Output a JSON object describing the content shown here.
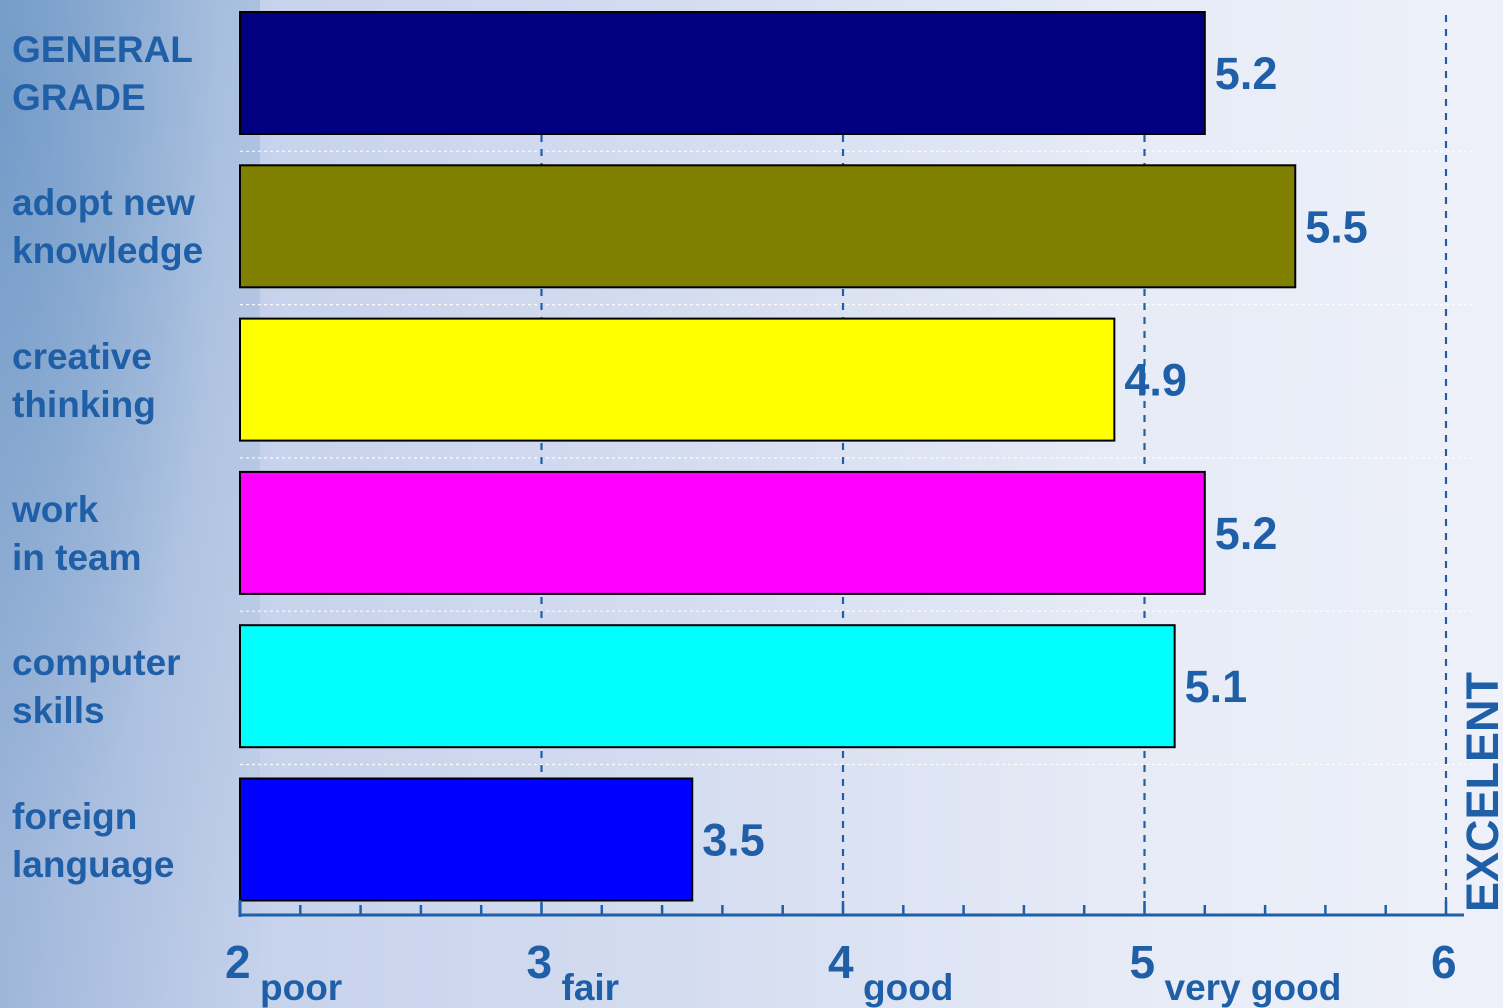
{
  "chart_data": {
    "type": "bar",
    "orientation": "horizontal",
    "categories": [
      "GENERAL\nGRADE",
      "adopt new\nknowledge",
      "creative\nthinking",
      "work\nin team",
      "computer\nskills",
      "foreign\nlanguage"
    ],
    "values": [
      5.2,
      5.5,
      4.9,
      5.2,
      5.1,
      3.5
    ],
    "value_labels": [
      "5.2",
      "5.5",
      "4.9",
      "5.2",
      "5.1",
      "3.5"
    ],
    "colors": [
      "#000080",
      "#808000",
      "#ffff00",
      "#ff00ff",
      "#00ffff",
      "#0000ff"
    ],
    "xlim": [
      2,
      6
    ],
    "x_ticks": [
      {
        "value": 2,
        "label": "2",
        "sub": "poor"
      },
      {
        "value": 3,
        "label": "3",
        "sub": "fair"
      },
      {
        "value": 4,
        "label": "4",
        "sub": "good"
      },
      {
        "value": 5,
        "label": "5",
        "sub": "very good"
      },
      {
        "value": 6,
        "label": "6",
        "sub": ""
      }
    ],
    "side_label": "EXCELENT",
    "grid": true,
    "accent_color": "#1f5fa8"
  }
}
